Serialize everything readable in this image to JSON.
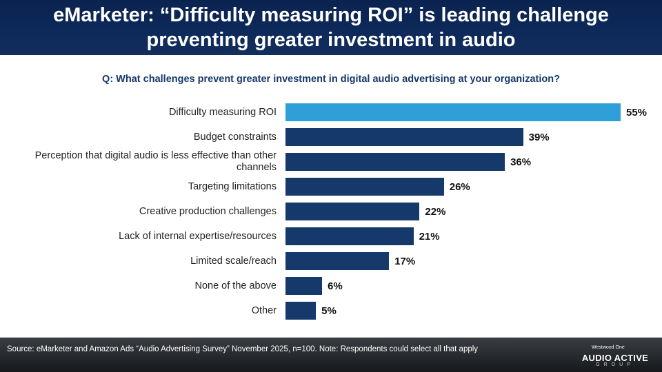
{
  "chart_data": {
    "type": "bar",
    "orientation": "horizontal",
    "title": "eMarketer: “Difficulty measuring ROI” is leading challenge preventing greater investment in audio",
    "subtitle": "Q: What challenges prevent greater investment in digital audio advertising at your organization?",
    "categories": [
      "Difficulty measuring ROI",
      "Budget constraints",
      "Perception that digital audio is less effective than other channels",
      "Targeting limitations",
      "Creative production challenges",
      "Lack of internal expertise/resources",
      "Limited scale/reach",
      "None of the above",
      "Other"
    ],
    "values": [
      55,
      39,
      36,
      26,
      22,
      21,
      17,
      6,
      5
    ],
    "value_labels": [
      "55%",
      "39%",
      "36%",
      "26%",
      "22%",
      "21%",
      "17%",
      "6%",
      "5%"
    ],
    "colors": [
      "#2f9fd8",
      "#15396a",
      "#15396a",
      "#15396a",
      "#15396a",
      "#15396a",
      "#15396a",
      "#15396a",
      "#15396a"
    ],
    "source": "Source: eMarketer and Amazon  Ads “Audio Advertising Survey” November 2025, n=100. Note: Respondents could select all that apply"
  },
  "logo": {
    "partner": "Westwood One",
    "name": "AUDIO ACTIVE",
    "tagline": "GROUP"
  }
}
